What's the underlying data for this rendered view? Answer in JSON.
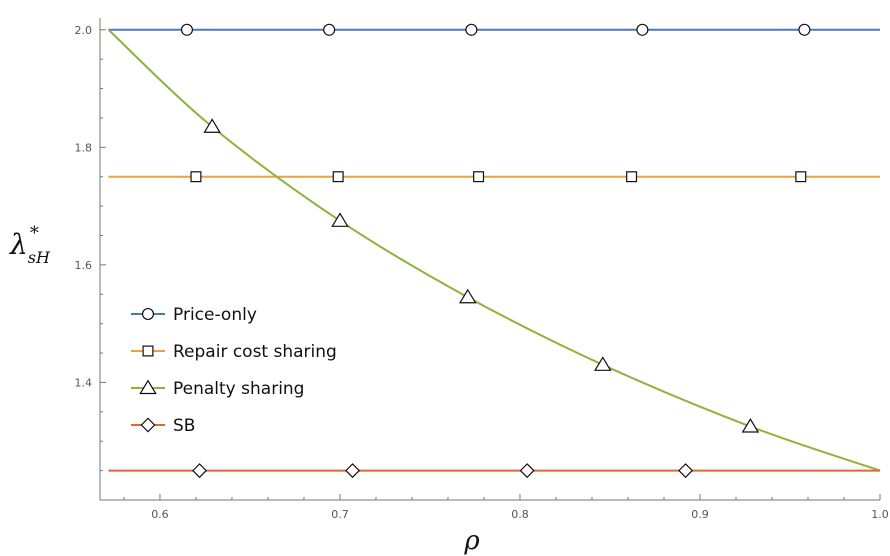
{
  "chart_data": {
    "type": "line",
    "xlabel": "ρ",
    "ylabel": {
      "base": "λ",
      "sub": "sH",
      "sup": "*"
    },
    "xlim": [
      0.5667,
      1.0
    ],
    "ylim": [
      1.2,
      2.02
    ],
    "x_ticks": [
      0.6,
      0.7,
      0.8,
      0.9,
      1.0
    ],
    "x_tick_labels": [
      "0.6",
      "0.7",
      "0.8",
      "0.9",
      "1.0"
    ],
    "y_ticks": [
      1.4,
      1.6,
      1.8,
      2.0
    ],
    "y_tick_labels": [
      "1.4",
      "1.6",
      "1.8",
      "2.0"
    ],
    "grid": false,
    "legend_position": "left",
    "series": [
      {
        "name": "Price-only",
        "color": "#4a7ab5",
        "marker": "circle",
        "x": [
          0.5714,
          1.0
        ],
        "y": [
          2.0,
          2.0
        ],
        "marker_x": [
          0.615,
          0.694,
          0.773,
          0.868,
          0.958
        ]
      },
      {
        "name": "Repair cost sharing",
        "color": "#e8a53b",
        "marker": "square",
        "x": [
          0.5714,
          1.0
        ],
        "y": [
          1.75,
          1.75
        ],
        "marker_x": [
          0.62,
          0.699,
          0.777,
          0.862,
          0.956
        ]
      },
      {
        "name": "Penalty sharing",
        "color": "#8db33a",
        "marker": "triangle",
        "x": [
          0.5714,
          0.629,
          0.7,
          0.771,
          0.846,
          0.928,
          1.0
        ],
        "y": [
          2.0,
          1.835,
          1.675,
          1.545,
          1.43,
          1.325,
          1.25
        ],
        "marker_x": [
          0.629,
          0.7,
          0.771,
          0.846,
          0.928
        ]
      },
      {
        "name": "SB",
        "color": "#e06633",
        "marker": "diamond",
        "x": [
          0.5714,
          1.0
        ],
        "y": [
          1.25,
          1.25
        ],
        "marker_x": [
          0.622,
          0.707,
          0.804,
          0.892
        ]
      }
    ]
  }
}
